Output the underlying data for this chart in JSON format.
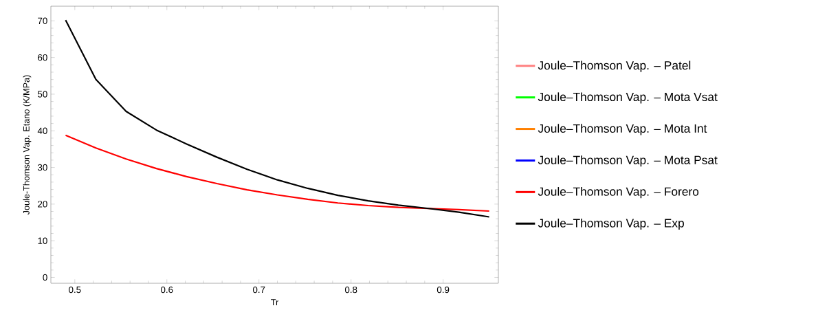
{
  "chart_data": {
    "type": "line",
    "xlabel": "Tr",
    "ylabel": "Joule-Thomson Vap. Etano (K/MPa)",
    "x": [
      0.49,
      0.5229,
      0.5557,
      0.5886,
      0.6214,
      0.6543,
      0.6871,
      0.72,
      0.7529,
      0.7857,
      0.8186,
      0.8514,
      0.8843,
      0.9171,
      0.95
    ],
    "xlim": [
      0.474,
      0.96
    ],
    "ylim": [
      -1.6,
      74
    ],
    "xticks": [
      0.5,
      0.6,
      0.7,
      0.8,
      0.9
    ],
    "yticks": [
      0,
      10,
      20,
      30,
      40,
      50,
      60,
      70
    ],
    "grid": false,
    "legend": "right",
    "line_style": "solid",
    "marker": "none",
    "series": [
      {
        "name": "Joule–Thomson Vap. – Patel",
        "color": "#ff8080",
        "values": [
          null,
          null,
          null,
          null,
          null,
          null,
          null,
          null,
          null,
          null,
          null,
          null,
          null,
          null,
          null
        ]
      },
      {
        "name": "Joule–Thomson Vap. – Mota Vsat",
        "color": "#00ff00",
        "values": [
          null,
          null,
          null,
          null,
          null,
          null,
          null,
          null,
          null,
          null,
          null,
          null,
          null,
          null,
          null
        ]
      },
      {
        "name": "Joule–Thomson Vap. – Mota Int",
        "color": "#ff8000",
        "values": [
          null,
          null,
          null,
          null,
          null,
          null,
          null,
          null,
          null,
          null,
          null,
          null,
          null,
          null,
          null
        ]
      },
      {
        "name": "Joule–Thomson Vap. – Mota Psat",
        "color": "#0000ff",
        "values": [
          null,
          null,
          null,
          null,
          null,
          null,
          null,
          null,
          null,
          null,
          null,
          null,
          null,
          null,
          null
        ]
      },
      {
        "name": "Joule–Thomson Vap. – Forero",
        "color": "#ff0000",
        "values": [
          38.8,
          35.3,
          32.3,
          29.7,
          27.5,
          25.6,
          23.9,
          22.5,
          21.3,
          20.3,
          19.6,
          19.1,
          18.8,
          18.5,
          18.1
        ]
      },
      {
        "name": "Joule–Thomson Vap. – Exp",
        "color": "#000000",
        "values": [
          70.2,
          54.0,
          45.3,
          40.2,
          36.4,
          32.8,
          29.5,
          26.6,
          24.3,
          22.4,
          20.9,
          19.7,
          18.8,
          17.8,
          16.5
        ]
      }
    ]
  }
}
